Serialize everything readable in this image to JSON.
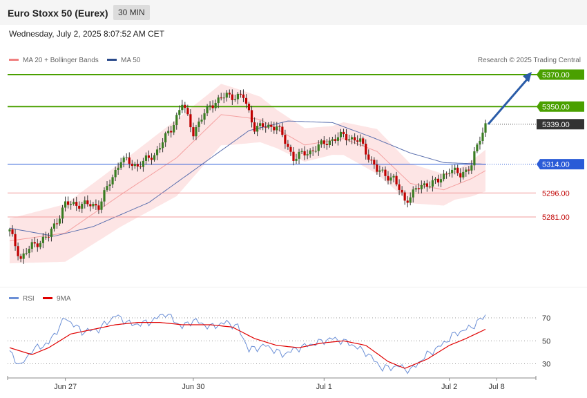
{
  "header": {
    "title": "Euro Stoxx 50 (Eurex)",
    "timeframe": "30 MIN"
  },
  "date_text": "Wednesday, July 2, 2025 8:07:52 AM CET",
  "credit": "Research © 2025 Trading Central",
  "colors": {
    "bullish": "#3a7d22",
    "bearish": "#c00000",
    "resistance": "#4aa000",
    "support": "#f29c9c",
    "pivot": "#2a5bd7",
    "rsi": "#6b8fd6",
    "rsi_ma": "#e00000",
    "ma20": "#f4a0a0",
    "ma50": "#5a6fae"
  },
  "chart_data": [
    {
      "type": "candlestick",
      "legend": [
        {
          "name": "MA 20 + Bollinger Bands",
          "color": "#f08080"
        },
        {
          "name": "MA 50",
          "color": "#2a4a8a"
        }
      ],
      "ylim": [
        5245,
        5383
      ],
      "levels": [
        {
          "value": 5370,
          "label": "5370.00",
          "kind": "resistance"
        },
        {
          "value": 5350,
          "label": "5350.00",
          "kind": "resistance"
        },
        {
          "value": 5339,
          "label": "5339.00",
          "kind": "last"
        },
        {
          "value": 5314,
          "label": "5314.00",
          "kind": "pivot"
        },
        {
          "value": 5296,
          "label": "5296.00",
          "kind": "support"
        },
        {
          "value": 5281,
          "label": "5281.00",
          "kind": "support"
        }
      ],
      "arrow": {
        "from": 5339,
        "to": 5370
      },
      "anchors": [
        {
          "i": 0,
          "v": 5272
        },
        {
          "i": 4,
          "v": 5255
        },
        {
          "i": 8,
          "v": 5263
        },
        {
          "i": 14,
          "v": 5269
        },
        {
          "i": 20,
          "v": 5289
        },
        {
          "i": 26,
          "v": 5289
        },
        {
          "i": 32,
          "v": 5288
        },
        {
          "i": 40,
          "v": 5317
        },
        {
          "i": 46,
          "v": 5313
        },
        {
          "i": 52,
          "v": 5320
        },
        {
          "i": 58,
          "v": 5336
        },
        {
          "i": 62,
          "v": 5352
        },
        {
          "i": 66,
          "v": 5334
        },
        {
          "i": 72,
          "v": 5351
        },
        {
          "i": 78,
          "v": 5357
        },
        {
          "i": 84,
          "v": 5356
        },
        {
          "i": 88,
          "v": 5337
        },
        {
          "i": 96,
          "v": 5338
        },
        {
          "i": 102,
          "v": 5318
        },
        {
          "i": 108,
          "v": 5322
        },
        {
          "i": 114,
          "v": 5328
        },
        {
          "i": 120,
          "v": 5332
        },
        {
          "i": 126,
          "v": 5328
        },
        {
          "i": 132,
          "v": 5310
        },
        {
          "i": 138,
          "v": 5305
        },
        {
          "i": 142,
          "v": 5291
        },
        {
          "i": 146,
          "v": 5298
        },
        {
          "i": 150,
          "v": 5302
        },
        {
          "i": 154,
          "v": 5303
        },
        {
          "i": 158,
          "v": 5311
        },
        {
          "i": 162,
          "v": 5307
        },
        {
          "i": 166,
          "v": 5314
        },
        {
          "i": 169,
          "v": 5330
        },
        {
          "i": 171,
          "v": 5339
        }
      ],
      "ma20_series": [
        {
          "i": 0,
          "v": 5266
        },
        {
          "i": 20,
          "v": 5271
        },
        {
          "i": 40,
          "v": 5295
        },
        {
          "i": 60,
          "v": 5318
        },
        {
          "i": 76,
          "v": 5345
        },
        {
          "i": 90,
          "v": 5342
        },
        {
          "i": 106,
          "v": 5326
        },
        {
          "i": 120,
          "v": 5330
        },
        {
          "i": 132,
          "v": 5322
        },
        {
          "i": 144,
          "v": 5302
        },
        {
          "i": 156,
          "v": 5298
        },
        {
          "i": 166,
          "v": 5305
        },
        {
          "i": 171,
          "v": 5310
        }
      ],
      "ma50_series": [
        {
          "i": 0,
          "v": 5274
        },
        {
          "i": 16,
          "v": 5269
        },
        {
          "i": 30,
          "v": 5275
        },
        {
          "i": 50,
          "v": 5290
        },
        {
          "i": 70,
          "v": 5315
        },
        {
          "i": 86,
          "v": 5335
        },
        {
          "i": 100,
          "v": 5341
        },
        {
          "i": 116,
          "v": 5340
        },
        {
          "i": 130,
          "v": 5331
        },
        {
          "i": 144,
          "v": 5321
        },
        {
          "i": 156,
          "v": 5315
        },
        {
          "i": 171,
          "v": 5314
        }
      ],
      "band_width": [
        {
          "i": 0,
          "v": 14
        },
        {
          "i": 20,
          "v": 18
        },
        {
          "i": 40,
          "v": 20
        },
        {
          "i": 60,
          "v": 24
        },
        {
          "i": 80,
          "v": 18
        },
        {
          "i": 96,
          "v": 12
        },
        {
          "i": 116,
          "v": 9
        },
        {
          "i": 132,
          "v": 14
        },
        {
          "i": 146,
          "v": 12
        },
        {
          "i": 160,
          "v": 9
        },
        {
          "i": 171,
          "v": 13
        }
      ]
    },
    {
      "type": "line",
      "legend": [
        {
          "name": "RSI",
          "color": "#6b8fd6"
        },
        {
          "name": "9MA",
          "color": "#e00000"
        }
      ],
      "ylim": [
        18,
        82
      ],
      "ticks": [
        70,
        50,
        30
      ],
      "x_tick_labels": [
        "Jun 27",
        "Jun 30",
        "Jul 1",
        "Jul 2",
        "Jul 8"
      ],
      "x_tick_index": [
        20,
        66,
        113,
        158,
        175
      ],
      "rsi": [
        {
          "i": 0,
          "v": 40
        },
        {
          "i": 4,
          "v": 28
        },
        {
          "i": 8,
          "v": 42
        },
        {
          "i": 14,
          "v": 48
        },
        {
          "i": 20,
          "v": 70
        },
        {
          "i": 26,
          "v": 58
        },
        {
          "i": 32,
          "v": 60
        },
        {
          "i": 38,
          "v": 72
        },
        {
          "i": 44,
          "v": 64
        },
        {
          "i": 50,
          "v": 66
        },
        {
          "i": 56,
          "v": 74
        },
        {
          "i": 62,
          "v": 62
        },
        {
          "i": 66,
          "v": 68
        },
        {
          "i": 72,
          "v": 62
        },
        {
          "i": 78,
          "v": 66
        },
        {
          "i": 82,
          "v": 62
        },
        {
          "i": 86,
          "v": 42
        },
        {
          "i": 92,
          "v": 46
        },
        {
          "i": 98,
          "v": 38
        },
        {
          "i": 104,
          "v": 44
        },
        {
          "i": 110,
          "v": 48
        },
        {
          "i": 116,
          "v": 52
        },
        {
          "i": 122,
          "v": 48
        },
        {
          "i": 128,
          "v": 40
        },
        {
          "i": 134,
          "v": 26
        },
        {
          "i": 140,
          "v": 28
        },
        {
          "i": 144,
          "v": 24
        },
        {
          "i": 150,
          "v": 38
        },
        {
          "i": 154,
          "v": 44
        },
        {
          "i": 160,
          "v": 56
        },
        {
          "i": 166,
          "v": 62
        },
        {
          "i": 171,
          "v": 72
        }
      ],
      "ma9": [
        {
          "i": 0,
          "v": 44
        },
        {
          "i": 8,
          "v": 38
        },
        {
          "i": 14,
          "v": 44
        },
        {
          "i": 22,
          "v": 56
        },
        {
          "i": 30,
          "v": 60
        },
        {
          "i": 38,
          "v": 64
        },
        {
          "i": 46,
          "v": 66
        },
        {
          "i": 54,
          "v": 66
        },
        {
          "i": 62,
          "v": 64
        },
        {
          "i": 72,
          "v": 64
        },
        {
          "i": 80,
          "v": 62
        },
        {
          "i": 88,
          "v": 52
        },
        {
          "i": 96,
          "v": 46
        },
        {
          "i": 104,
          "v": 44
        },
        {
          "i": 112,
          "v": 48
        },
        {
          "i": 120,
          "v": 50
        },
        {
          "i": 128,
          "v": 46
        },
        {
          "i": 136,
          "v": 32
        },
        {
          "i": 142,
          "v": 26
        },
        {
          "i": 150,
          "v": 34
        },
        {
          "i": 158,
          "v": 46
        },
        {
          "i": 164,
          "v": 52
        },
        {
          "i": 171,
          "v": 60
        }
      ]
    }
  ]
}
